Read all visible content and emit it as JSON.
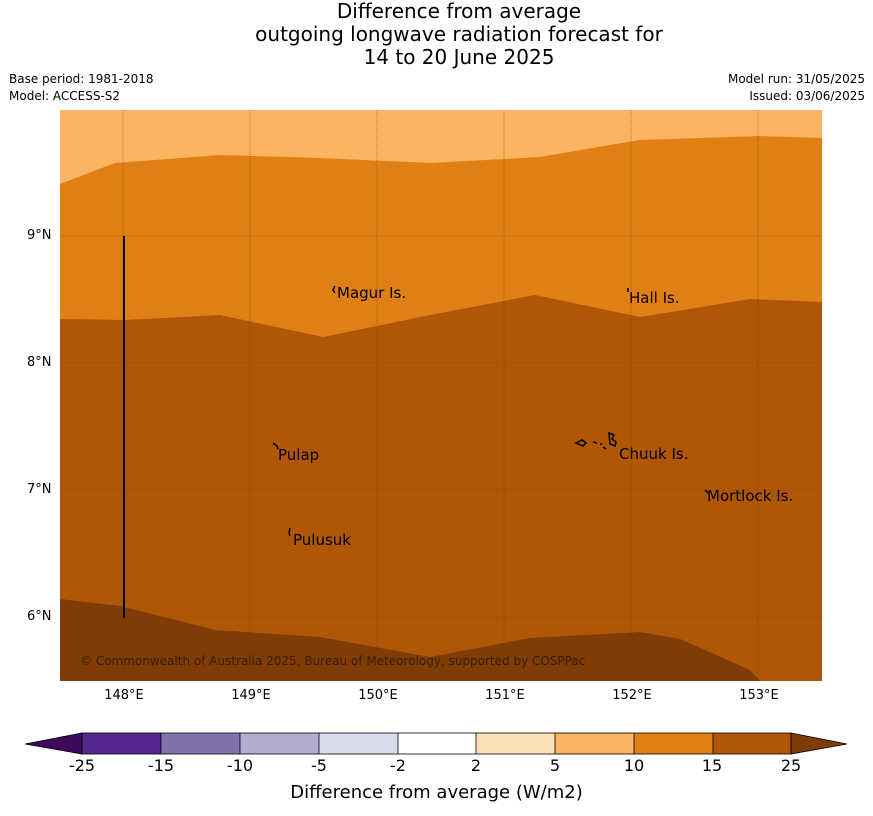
{
  "title": {
    "line1": "Difference from average",
    "line2": "outgoing longwave radiation forecast for",
    "line3": "14 to 20 June 2025"
  },
  "meta": {
    "base_period": "Base period: 1981-2018",
    "model": "Model: ACCESS-S2",
    "model_run": "Model run: 31/05/2025",
    "issued": "Issued: 03/06/2025"
  },
  "map": {
    "lat_labels": [
      "9°N",
      "8°N",
      "7°N",
      "6°N"
    ],
    "lon_labels": [
      "148°E",
      "149°E",
      "150°E",
      "151°E",
      "152°E",
      "153°E"
    ],
    "places": [
      "Magur Is.",
      "Hall Is.",
      "Pulap",
      "Chuuk Is.",
      "Mortlock Is.",
      "Pulusuk"
    ],
    "credit": "© Commonwealth of Australia 2025, Bureau of Meteorology, supported by COSPPac",
    "band_colors": {
      "5_to_10": "#fbb45f",
      "10_to_15": "#e08014",
      "15_to_25": "#b05607",
      "above_25": "#7f3c07"
    }
  },
  "colorbar": {
    "ticks": [
      "-25",
      "-15",
      "-10",
      "-5",
      "-2",
      "2",
      "5",
      "10",
      "15",
      "25"
    ],
    "colors": [
      "#3f0a5e",
      "#54278f",
      "#8073ac",
      "#b2abd2",
      "#d8daeb",
      "#ffffff",
      "#fee0b6",
      "#fbb45f",
      "#e08014",
      "#b05607",
      "#7f3c07"
    ],
    "label": "Difference from average (W/m2)"
  }
}
